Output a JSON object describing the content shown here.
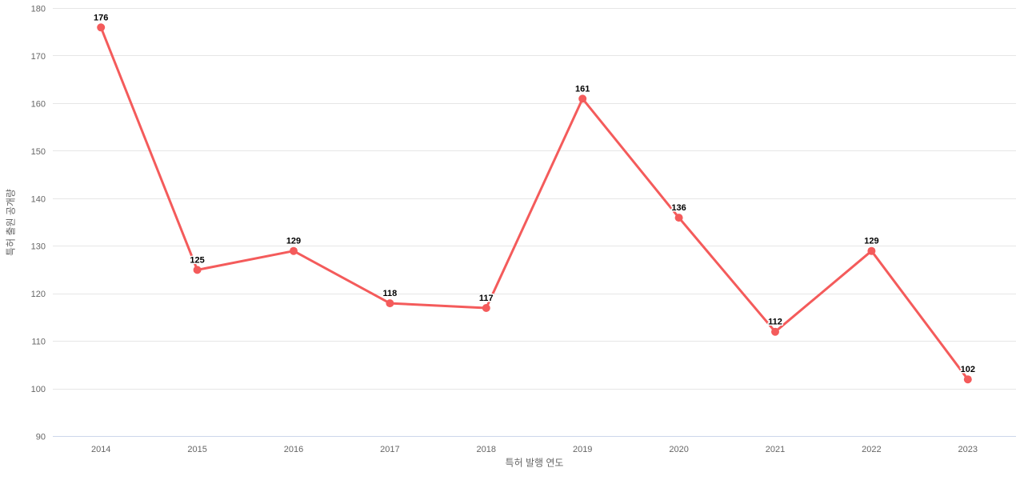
{
  "chart_data": {
    "type": "line",
    "title": "",
    "categories": [
      "2014",
      "2015",
      "2016",
      "2017",
      "2018",
      "2019",
      "2020",
      "2021",
      "2022",
      "2023"
    ],
    "series": [
      {
        "name": "특허 출원 공개량",
        "values": [
          176,
          125,
          129,
          118,
          117,
          161,
          136,
          112,
          129,
          102
        ]
      }
    ],
    "xlabel": "특허 발행 연도",
    "ylabel": "특허 출원 공개량",
    "ylim": [
      90,
      180
    ],
    "yticks": [
      90,
      100,
      110,
      120,
      130,
      140,
      150,
      160,
      170,
      180
    ],
    "grid": true,
    "legend": false,
    "data_labels_visible": true,
    "colors": {
      "line": "#f45b5b",
      "marker": "#f45b5b",
      "grid": "#e6e6e6",
      "axis_line": "#ccd6eb",
      "tick_label": "#666666",
      "axis_title": "#666666",
      "data_label": "#000000",
      "background": "#ffffff"
    }
  }
}
